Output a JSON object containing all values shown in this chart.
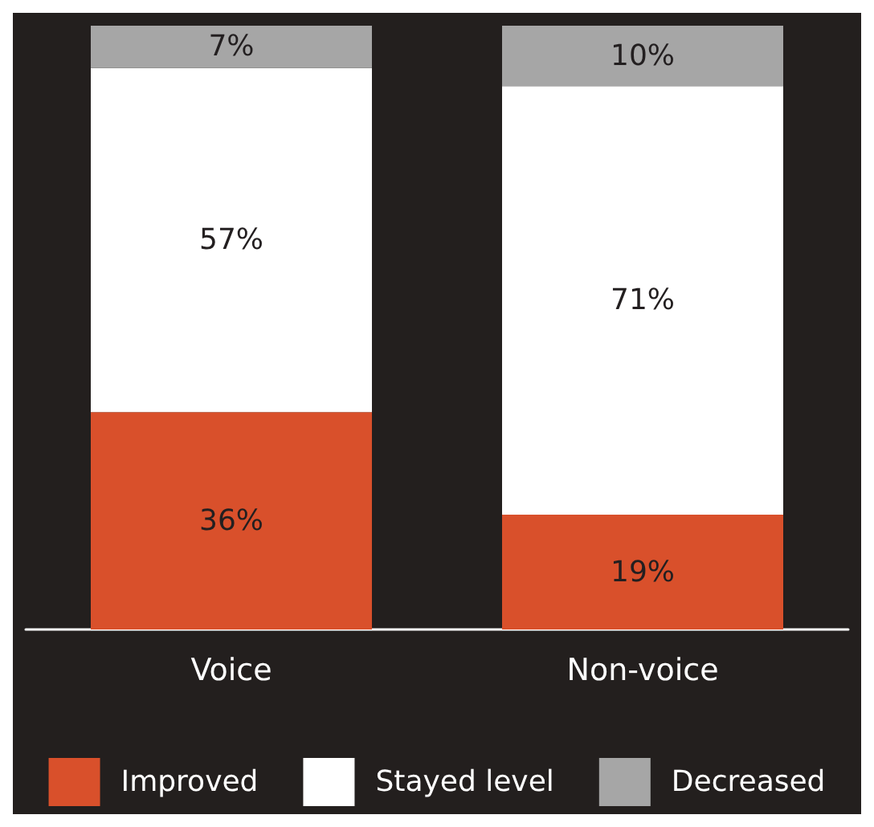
{
  "chart_data": {
    "type": "bar",
    "stacked": true,
    "categories": [
      "Voice",
      "Non-voice"
    ],
    "series": [
      {
        "name": "Improved",
        "color": "#d9502b",
        "values": [
          36,
          19
        ],
        "value_labels": [
          "36%",
          "19%"
        ]
      },
      {
        "name": "Stayed level",
        "color": "#ffffff",
        "values": [
          57,
          71
        ],
        "value_labels": [
          "57%",
          "71%"
        ]
      },
      {
        "name": "Decreased",
        "color": "#a6a6a6",
        "values": [
          7,
          10
        ],
        "value_labels": [
          "7%",
          "10%"
        ]
      }
    ],
    "legend": "bottom",
    "tick_labels": "x"
  }
}
